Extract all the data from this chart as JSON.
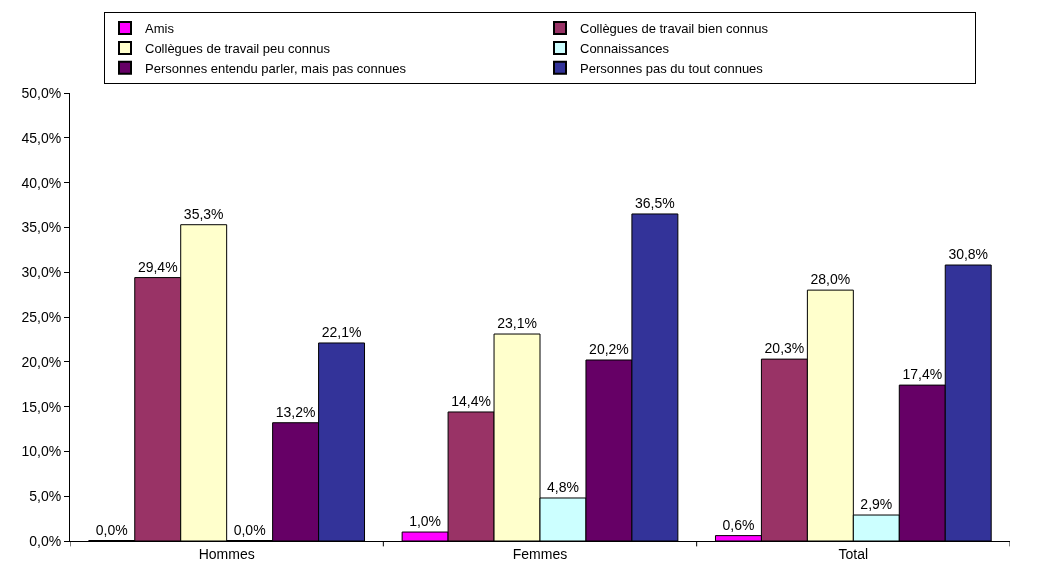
{
  "chart_data": {
    "type": "bar",
    "categories": [
      "Hommes",
      "Femmes",
      "Total"
    ],
    "series": [
      {
        "name": "Amis",
        "color": "#ff00ff",
        "values": [
          0.0,
          1.0,
          0.6
        ],
        "value_labels": [
          "0,0%",
          "1,0%",
          "0,6%"
        ]
      },
      {
        "name": "Collègues de travail bien connus",
        "color": "#993366",
        "values": [
          29.4,
          14.4,
          20.3
        ],
        "value_labels": [
          "29,4%",
          "14,4%",
          "20,3%"
        ]
      },
      {
        "name": "Collègues de travail peu connus",
        "color": "#ffffcc",
        "values": [
          35.3,
          23.1,
          28.0
        ],
        "value_labels": [
          "35,3%",
          "23,1%",
          "28,0%"
        ]
      },
      {
        "name": "Connaissances",
        "color": "#ccffff",
        "values": [
          0.0,
          4.8,
          2.9
        ],
        "value_labels": [
          "0,0%",
          "4,8%",
          "2,9%"
        ]
      },
      {
        "name": "Personnes entendu parler, mais pas connues",
        "color": "#660066",
        "values": [
          13.2,
          20.2,
          17.4
        ],
        "value_labels": [
          "13,2%",
          "20,2%",
          "17,4%"
        ]
      },
      {
        "name": "Personnes pas du tout connues",
        "color": "#333399",
        "values": [
          22.1,
          36.5,
          30.8
        ],
        "value_labels": [
          "22,1%",
          "36,5%",
          "30,8%"
        ]
      }
    ],
    "ylim": [
      0,
      50
    ],
    "yticks": [
      {
        "value": 0,
        "label": "0,0%"
      },
      {
        "value": 5,
        "label": "5,0%"
      },
      {
        "value": 10,
        "label": "10,0%"
      },
      {
        "value": 15,
        "label": "15,0%"
      },
      {
        "value": 20,
        "label": "20,0%"
      },
      {
        "value": 25,
        "label": "25,0%"
      },
      {
        "value": 30,
        "label": "30,0%"
      },
      {
        "value": 35,
        "label": "35,0%"
      },
      {
        "value": 40,
        "label": "40,0%"
      },
      {
        "value": 45,
        "label": "45,0%"
      },
      {
        "value": 50,
        "label": "50,0%"
      }
    ],
    "grid": false,
    "legend": "top"
  }
}
